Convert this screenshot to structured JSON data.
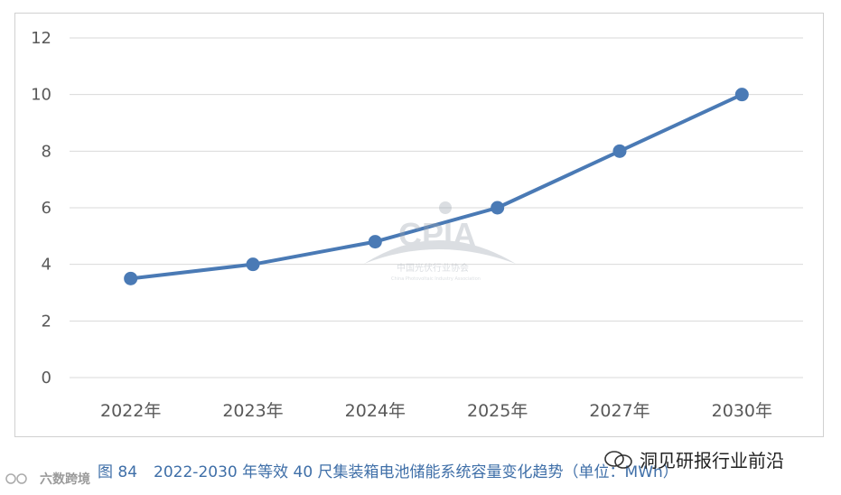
{
  "chart_data": {
    "type": "line",
    "categories": [
      "2022年",
      "2023年",
      "2024年",
      "2025年",
      "2027年",
      "2030年"
    ],
    "values": [
      3.5,
      4,
      4.8,
      6,
      8,
      10
    ],
    "ylim": [
      0,
      12
    ],
    "yticks": [
      "0",
      "2",
      "4",
      "6",
      "8",
      "10",
      "12"
    ],
    "grid": true,
    "colors": {
      "line": "#4a7ab5",
      "marker": "#4a7ab5"
    }
  },
  "watermark": {
    "brand": "CPIA",
    "org_cn": "中国光伏行业协会",
    "org_en": "China Photovoltaic Industry Association"
  },
  "caption": {
    "prefix": "图 84",
    "text": "2022-2030 年等效 40 尺集装箱电池储能系统容量变化趋势（单位：MWh）"
  },
  "source_tag": {
    "text": "洞见研报行业前沿"
  },
  "bottom_logo": {
    "text": "六数跨境"
  }
}
